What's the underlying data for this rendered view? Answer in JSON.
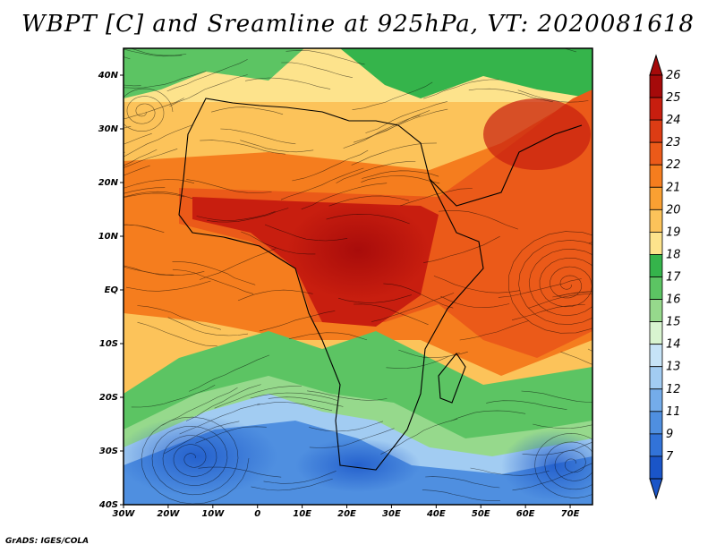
{
  "title": "WBPT [C] and Sreamline at 925hPa, VT: 2020081618",
  "footer": "GrADS: IGES/COLA",
  "map": {
    "lon_labels": [
      "30W",
      "20W",
      "10W",
      "0",
      "10E",
      "20E",
      "30E",
      "40E",
      "50E",
      "60E",
      "70E"
    ],
    "lat_labels": [
      "40N",
      "30N",
      "20N",
      "10N",
      "EQ",
      "10S",
      "20S",
      "30S",
      "40S"
    ]
  },
  "colorbar": {
    "labels": [
      "26",
      "25",
      "24",
      "23",
      "22",
      "21",
      "20",
      "19",
      "18",
      "17",
      "16",
      "15",
      "14",
      "13",
      "12",
      "11",
      "9",
      "7"
    ],
    "colors": [
      "#a50a0a",
      "#c81e0f",
      "#dc3c14",
      "#eb5a19",
      "#f57d1e",
      "#faa032",
      "#fcc35a",
      "#fde38c",
      "#35b44b",
      "#5cc463",
      "#96d98c",
      "#d8f4d0",
      "#c6e3f7",
      "#a2ccf2",
      "#74acea",
      "#4f8fe0",
      "#3273d8",
      "#1a55c8"
    ]
  }
}
